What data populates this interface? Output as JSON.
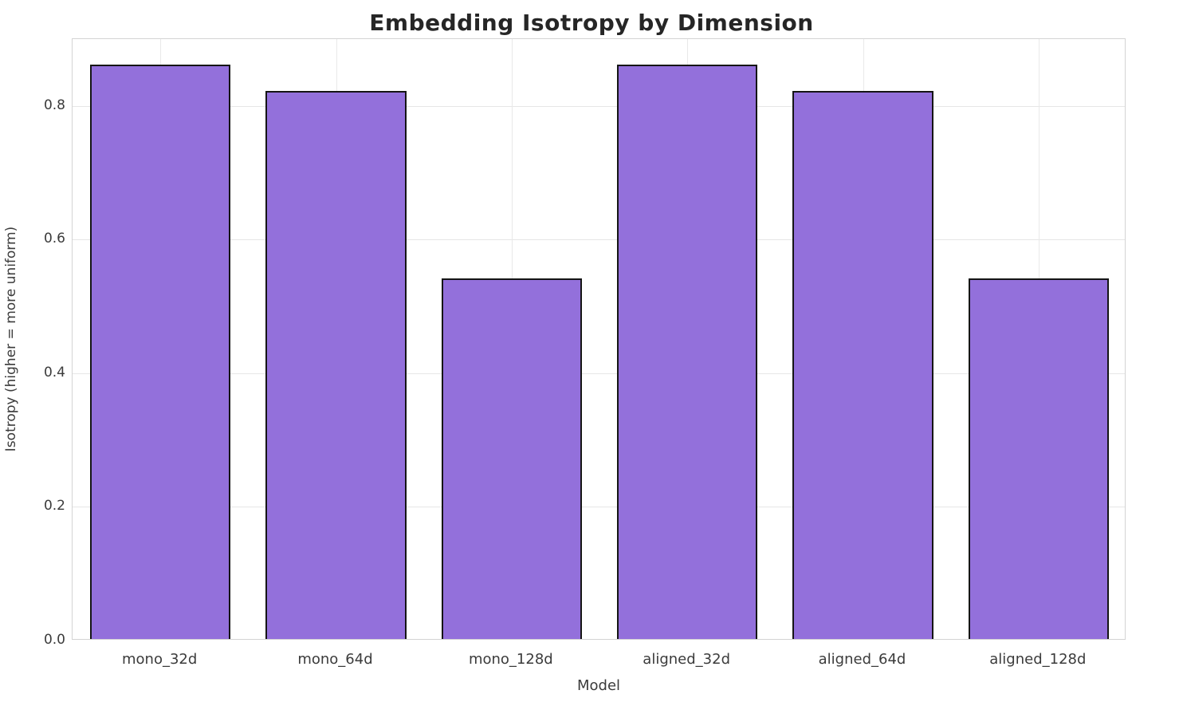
{
  "chart_data": {
    "type": "bar",
    "title": "Embedding Isotropy by Dimension",
    "xlabel": "Model",
    "ylabel": "Isotropy (higher = more uniform)",
    "categories": [
      "mono_32d",
      "mono_64d",
      "mono_128d",
      "aligned_32d",
      "aligned_64d",
      "aligned_128d"
    ],
    "values": [
      0.86,
      0.82,
      0.54,
      0.86,
      0.82,
      0.54
    ],
    "ylim": [
      0,
      0.9
    ],
    "yticks": [
      0.0,
      0.2,
      0.4,
      0.6,
      0.8
    ],
    "grid": true,
    "legend": "none",
    "bar_color": "#9370DB",
    "bar_edge_color": "#151515",
    "bar_width_fraction": 0.8
  }
}
